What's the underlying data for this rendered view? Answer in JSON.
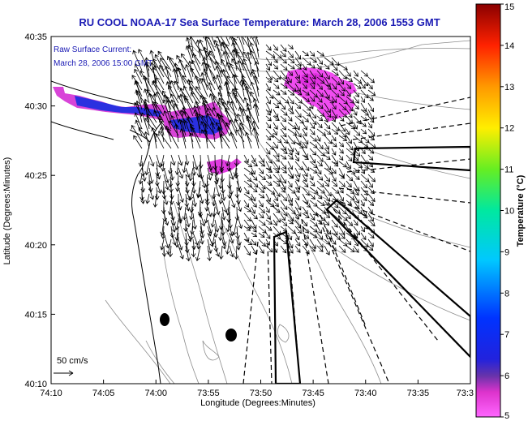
{
  "title": "RU COOL  NOAA-17  Sea Surface Temperature:  March 28, 2006 1553 GMT",
  "title_color": "#1a1ab4",
  "annotation": {
    "line1": "Raw Surface Current:",
    "line2": "March 28, 2006 15:00 GMT",
    "color": "#1a1ab4"
  },
  "axes": {
    "xlabel": "Longitude (Degrees:Minutes)",
    "ylabel": "Latitude (Degrees:Minutes)",
    "x_ticks": [
      "74:10",
      "74:05",
      "74:00",
      "73:55",
      "73:50",
      "73:45",
      "73:40",
      "73:35",
      "73:3"
    ],
    "y_ticks": [
      "40:35",
      "40:30",
      "40:25",
      "40:20",
      "40:15",
      "40:10"
    ]
  },
  "scale_label": "50 cm/s",
  "colorbar": {
    "label": "Temperature (°C)",
    "ticks": [
      "15",
      "14",
      "13",
      "12",
      "11",
      "10",
      "9",
      "8",
      "7",
      "6",
      "5"
    ],
    "min": 5,
    "max": 15
  }
}
